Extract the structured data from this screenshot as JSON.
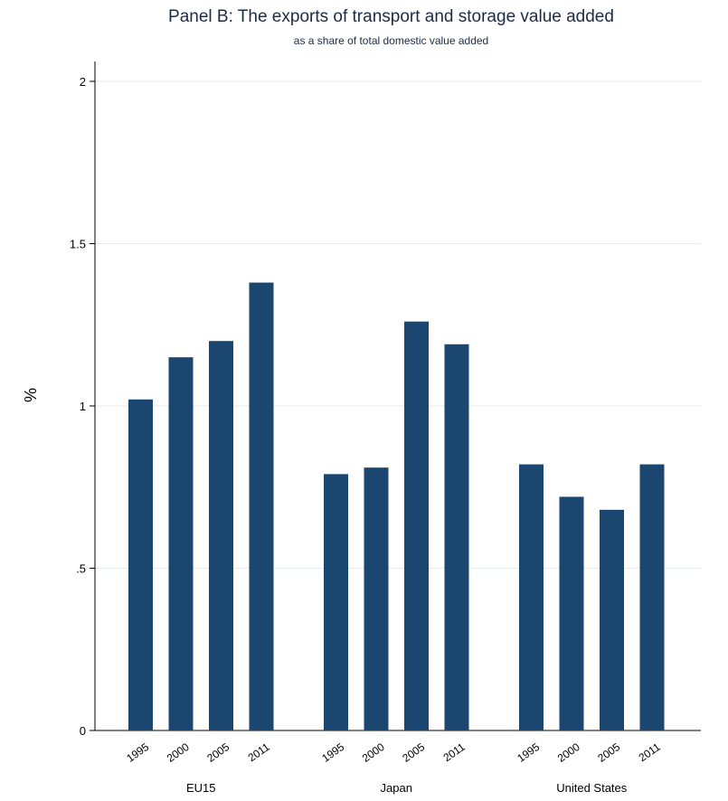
{
  "chart_data": {
    "type": "bar",
    "title": "Panel B: The exports of transport and storage value added",
    "subtitle": "as a share of total domestic value added",
    "ylabel": "%",
    "ylim": [
      0,
      2
    ],
    "yticks": [
      {
        "value": 0,
        "label": "0"
      },
      {
        "value": 0.5,
        "label": ".5"
      },
      {
        "value": 1,
        "label": "1"
      },
      {
        "value": 1.5,
        "label": "1.5"
      },
      {
        "value": 2,
        "label": "2"
      }
    ],
    "grid": true,
    "bar_color": "#1b4670",
    "groups": [
      {
        "name": "EU15",
        "categories": [
          "1995",
          "2000",
          "2005",
          "2011"
        ],
        "values": [
          1.02,
          1.15,
          1.2,
          1.38
        ]
      },
      {
        "name": "Japan",
        "categories": [
          "1995",
          "2000",
          "2005",
          "2011"
        ],
        "values": [
          0.79,
          0.81,
          1.26,
          1.19
        ]
      },
      {
        "name": "United States",
        "categories": [
          "1995",
          "2000",
          "2005",
          "2011"
        ],
        "values": [
          0.82,
          0.72,
          0.68,
          0.82
        ]
      }
    ]
  }
}
